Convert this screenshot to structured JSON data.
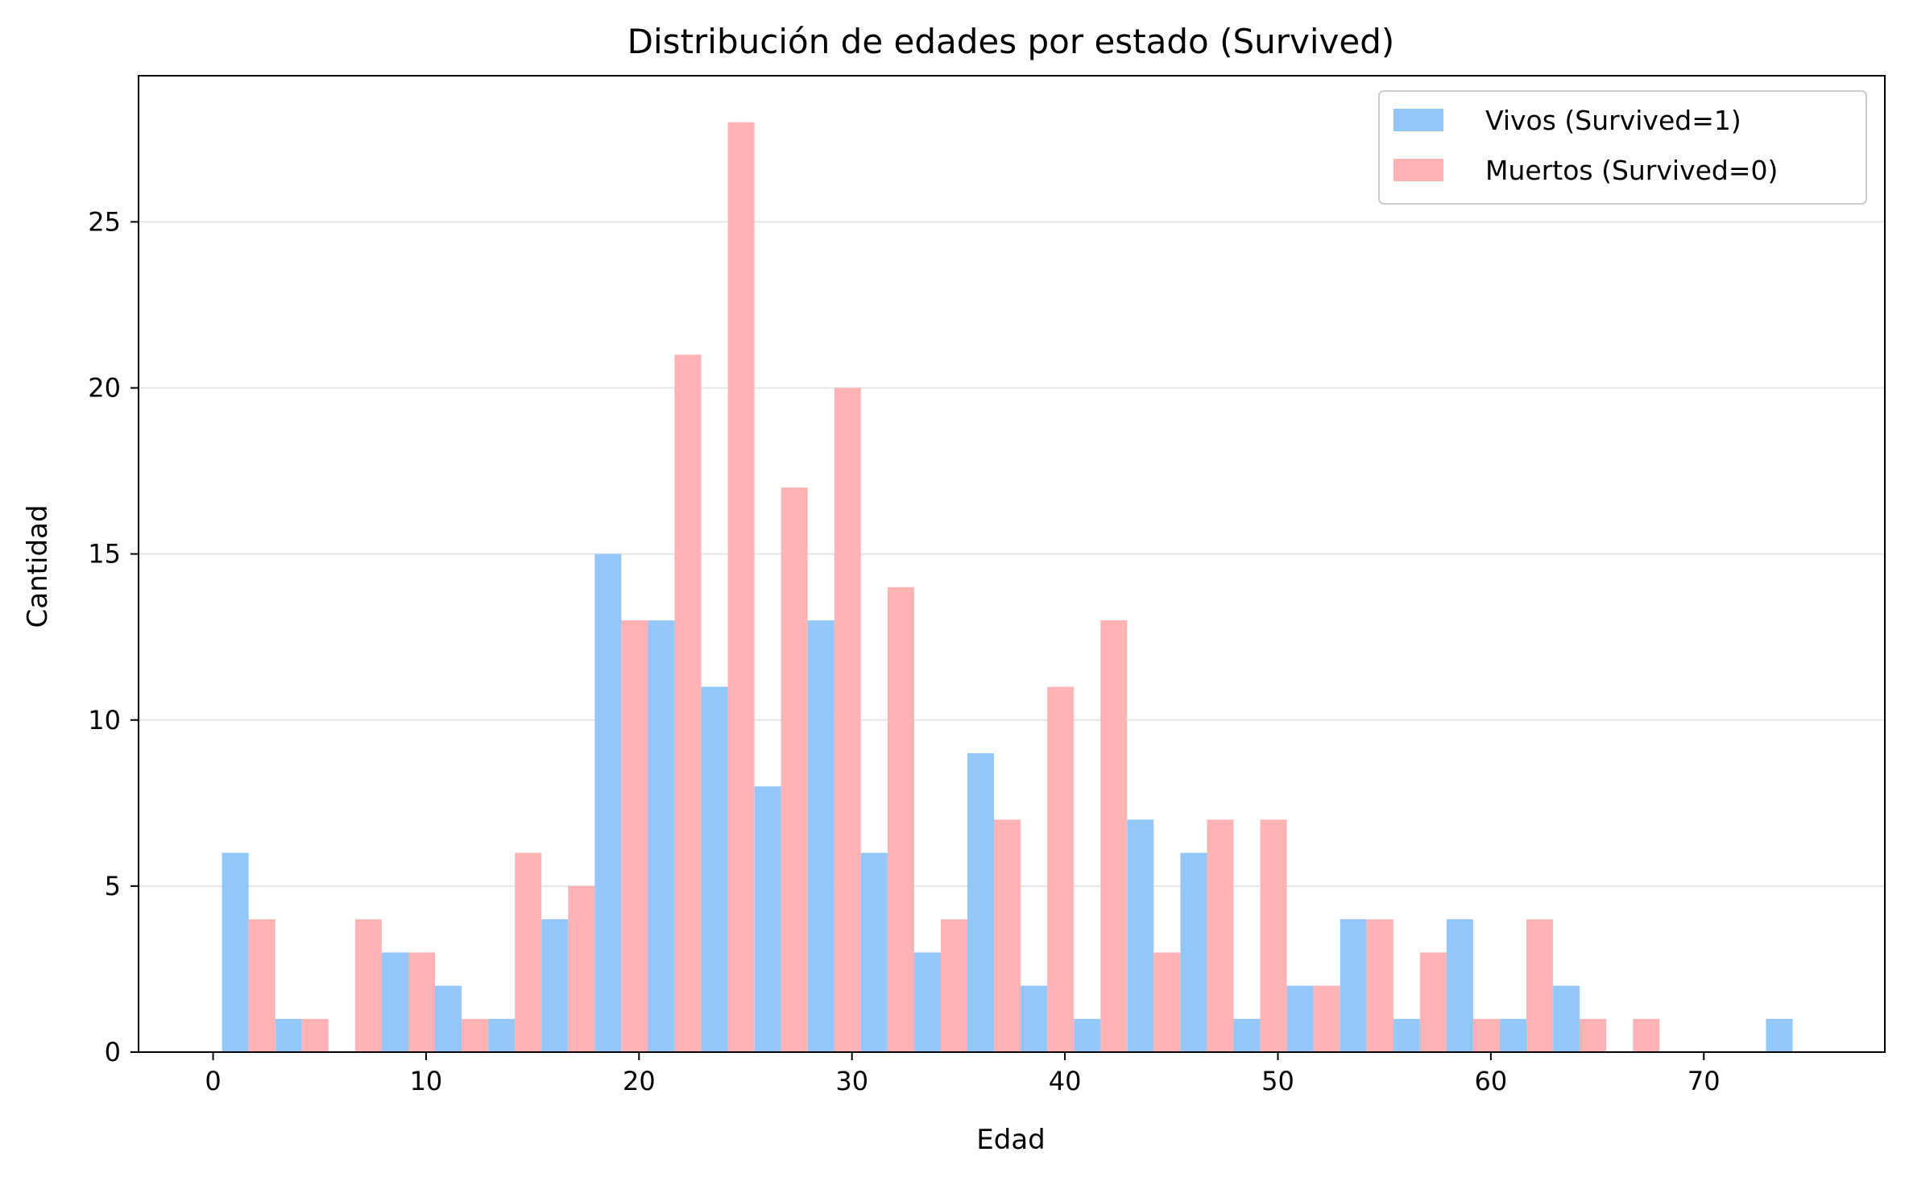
{
  "chart_data": {
    "type": "bar",
    "title": "Distribución de edades por estado (Survived)",
    "xlabel": "Edad",
    "ylabel": "Cantidad",
    "xlim": [
      -3.5,
      78.5
    ],
    "ylim": [
      0,
      29.4
    ],
    "xticks": [
      0,
      10,
      20,
      30,
      40,
      50,
      60,
      70
    ],
    "yticks": [
      0,
      5,
      10,
      15,
      20,
      25
    ],
    "grid": "horizontal",
    "legend_position": "top-right",
    "bin_start": 0.42,
    "bin_width": 2.5,
    "bin_count": 30,
    "series": [
      {
        "name": "Vivos (Survived=1)",
        "color": "#93c7fa",
        "values": [
          6,
          1,
          0,
          3,
          2,
          1,
          4,
          15,
          13,
          11,
          8,
          13,
          6,
          3,
          9,
          2,
          1,
          7,
          6,
          1,
          2,
          4,
          1,
          4,
          1,
          2,
          0,
          0,
          0,
          1
        ]
      },
      {
        "name": "Muertos (Survived=0)",
        "color": "#ffb3b5",
        "values": [
          4,
          1,
          4,
          3,
          1,
          6,
          5,
          13,
          21,
          28,
          17,
          20,
          14,
          4,
          7,
          11,
          13,
          3,
          7,
          7,
          2,
          4,
          3,
          1,
          4,
          1,
          1,
          0,
          0,
          0
        ]
      }
    ]
  }
}
